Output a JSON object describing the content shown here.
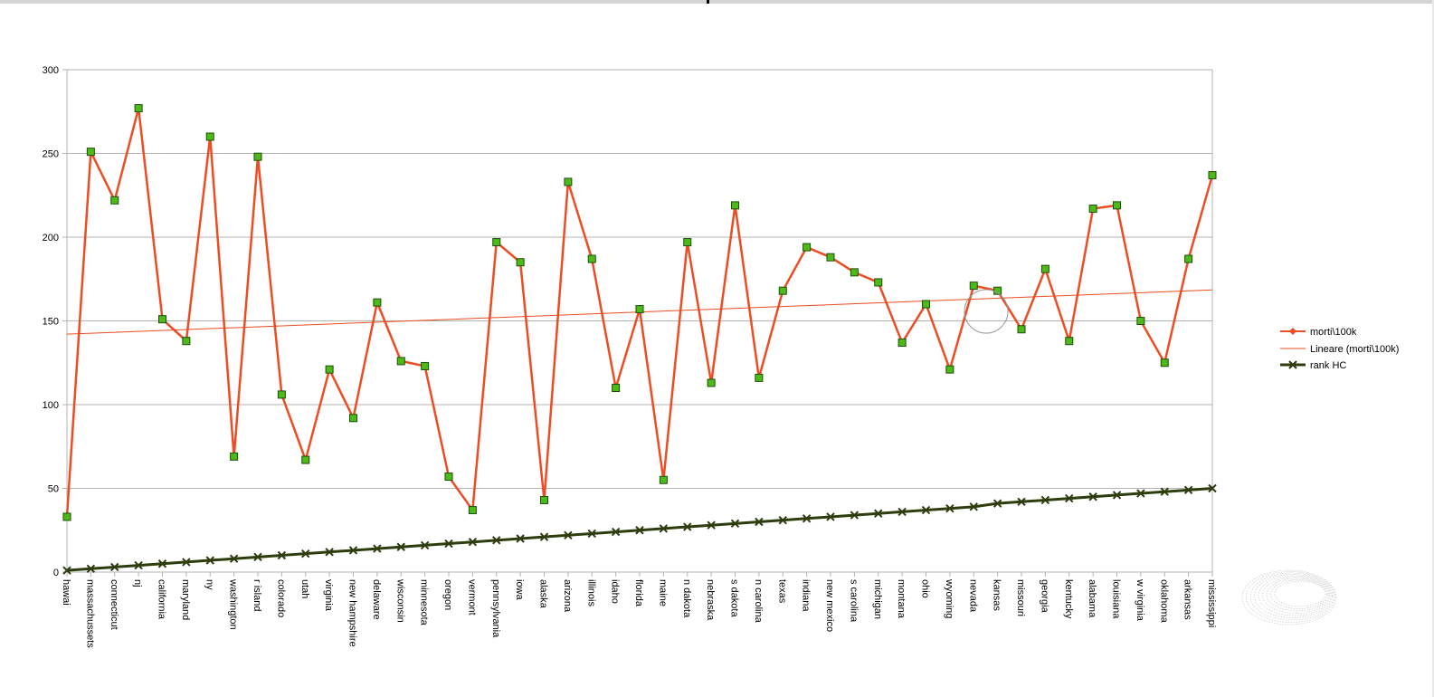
{
  "chart_data": {
    "type": "line",
    "categories": [
      "hawai",
      "massachussets",
      "connecticut",
      "nj",
      "california",
      "maryland",
      "ny",
      "washington",
      "r island",
      "colorado",
      "utah",
      "virginia",
      "new hampshire",
      "delaware",
      "wisconsin",
      "minnesota",
      "oregon",
      "vermont",
      "pennsylvania",
      "iowa",
      "alaska",
      "arizona",
      "illinois",
      "idaho",
      "florida",
      "maine",
      "n dakota",
      "nebraska",
      "s dakota",
      "n carolina",
      "texas",
      "indiana",
      "new mexico",
      "s carolina",
      "michigan",
      "montana",
      "ohio",
      "wyoming",
      "nevada",
      "kansas",
      "missouri",
      "georgia",
      "kentucky",
      "alabama",
      "louisiana",
      "w virginia",
      "oklahoma",
      "arkansas",
      "mississippi"
    ],
    "series": [
      {
        "name": "morti\\100k",
        "color": "#ee4c22",
        "marker_color": "#4cbb17",
        "values": [
          33,
          251,
          222,
          277,
          151,
          138,
          260,
          69,
          248,
          106,
          67,
          121,
          92,
          161,
          126,
          123,
          57,
          37,
          197,
          185,
          43,
          233,
          187,
          110,
          157,
          55,
          197,
          113,
          219,
          116,
          168,
          194,
          188,
          179,
          173,
          137,
          160,
          121,
          171,
          168,
          145,
          181,
          138,
          217,
          219,
          150,
          125,
          187,
          237
        ]
      },
      {
        "name": "Lineare (morti\\100k)",
        "color": "#ee4c22",
        "trend": "linear"
      },
      {
        "name": "rank HC",
        "color": "#2e3d0e",
        "values": [
          1,
          2,
          3,
          4,
          5,
          6,
          7,
          8,
          9,
          10,
          11,
          12,
          13,
          14,
          15,
          16,
          17,
          18,
          19,
          20,
          21,
          22,
          23,
          24,
          25,
          26,
          27,
          28,
          29,
          30,
          31,
          32,
          33,
          34,
          35,
          36,
          37,
          38,
          39,
          41,
          42,
          43,
          44,
          45,
          46,
          47,
          48,
          49,
          50
        ]
      }
    ],
    "yticks": [
      "0",
      "50",
      "100",
      "150",
      "200",
      "250",
      "300"
    ],
    "ylim": [
      0,
      300
    ],
    "grid": true,
    "legend": "right"
  }
}
